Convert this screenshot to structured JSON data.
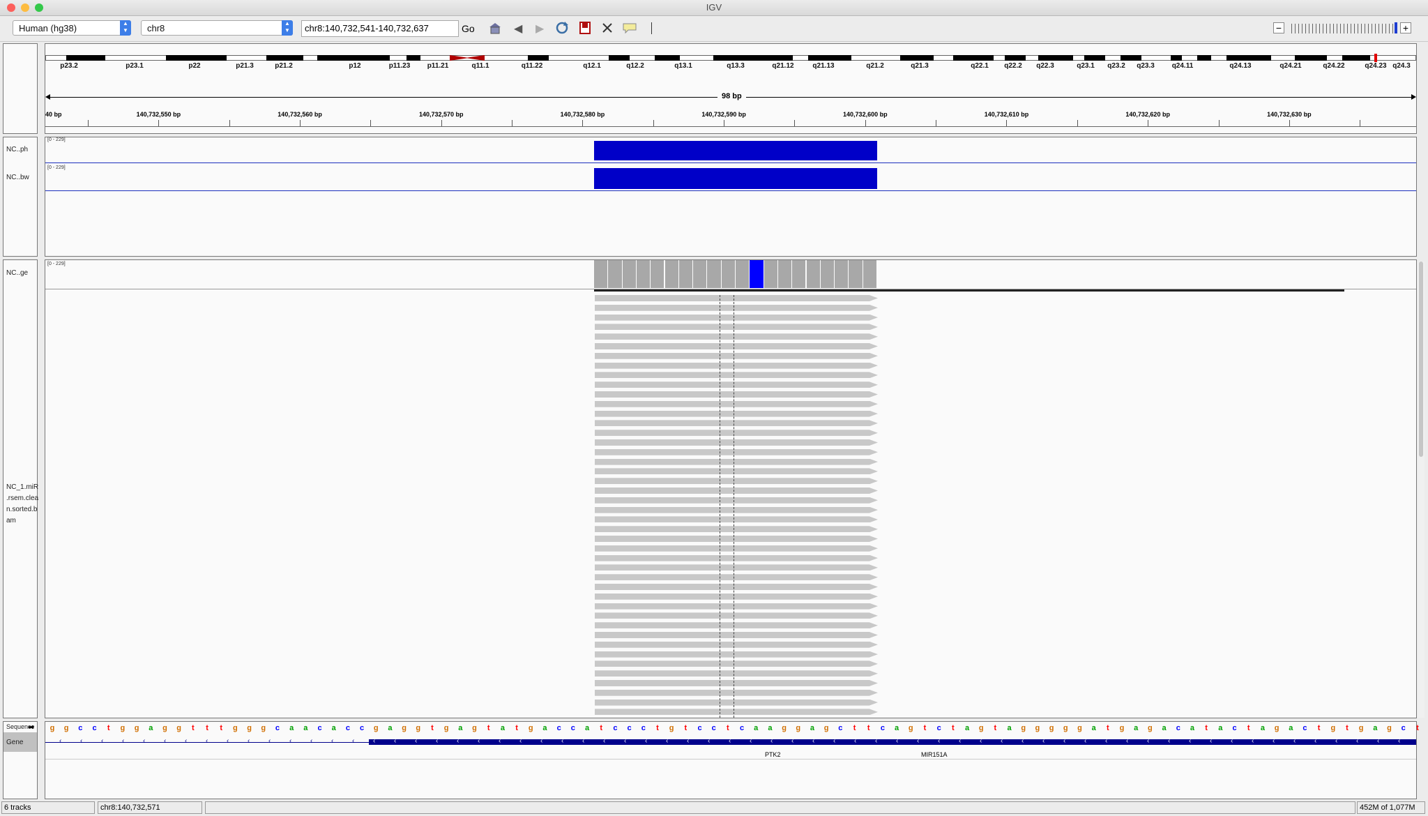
{
  "window": {
    "title": "IGV"
  },
  "toolbar": {
    "genome": "Human (hg38)",
    "chromosome": "chr8",
    "locus": "chr8:140,732,541-140,732,637",
    "go_label": "Go"
  },
  "ideogram": {
    "bands": [
      "p23.2",
      "p23.1",
      "p22",
      "p21.3",
      "p21.2",
      "p12",
      "p11.23",
      "p11.21",
      "q11.1",
      "q11.22",
      "q12.1",
      "q12.2",
      "q13.1",
      "q13.3",
      "q21.12",
      "q21.13",
      "q21.2",
      "q21.3",
      "q22.1",
      "q22.2",
      "q22.3",
      "q23.1",
      "q23.2",
      "q23.3",
      "q24.11",
      "q24.13",
      "q24.21",
      "q24.22",
      "q24.23",
      "q24.3"
    ]
  },
  "ruler": {
    "span_label": "98 bp",
    "edge_label": "40 bp",
    "ticks": [
      "140,732,550 bp",
      "140,732,560 bp",
      "140,732,570 bp",
      "140,732,580 bp",
      "140,732,590 bp",
      "140,732,600 bp",
      "140,732,610 bp",
      "140,732,620 bp",
      "140,732,630 bp"
    ]
  },
  "tracks": {
    "ph": {
      "name": "NC..ph",
      "range": "[0 - 229]"
    },
    "bw": {
      "name": "NC..bw",
      "range": "[0 - 229]"
    },
    "ge": {
      "name": "NC..ge",
      "range": "[0 - 229]"
    },
    "bam": {
      "name_lines": [
        "NC_1.miR",
        ".rsem.clea",
        "n.sorted.b",
        "am"
      ]
    },
    "sequence": {
      "name": "Sequence",
      "bases": "ggcctggaggtttgggcaacaccgaggtgagtatgaccatccctgtcctcaaggagcttcagtctagtagggggatgagacatactagactgtgagct"
    },
    "gene": {
      "name": "Gene",
      "labels": [
        "PTK2",
        "MIR151A"
      ]
    }
  },
  "colors": {
    "coverage": "#0000c8",
    "gene": "#00008b",
    "a": "#00a000",
    "c": "#0000ff",
    "g": "#d17105",
    "t": "#ff0000"
  },
  "status": {
    "tracks": "6 tracks",
    "position": "chr8:140,732,571",
    "memory": "452M of 1,077M"
  }
}
